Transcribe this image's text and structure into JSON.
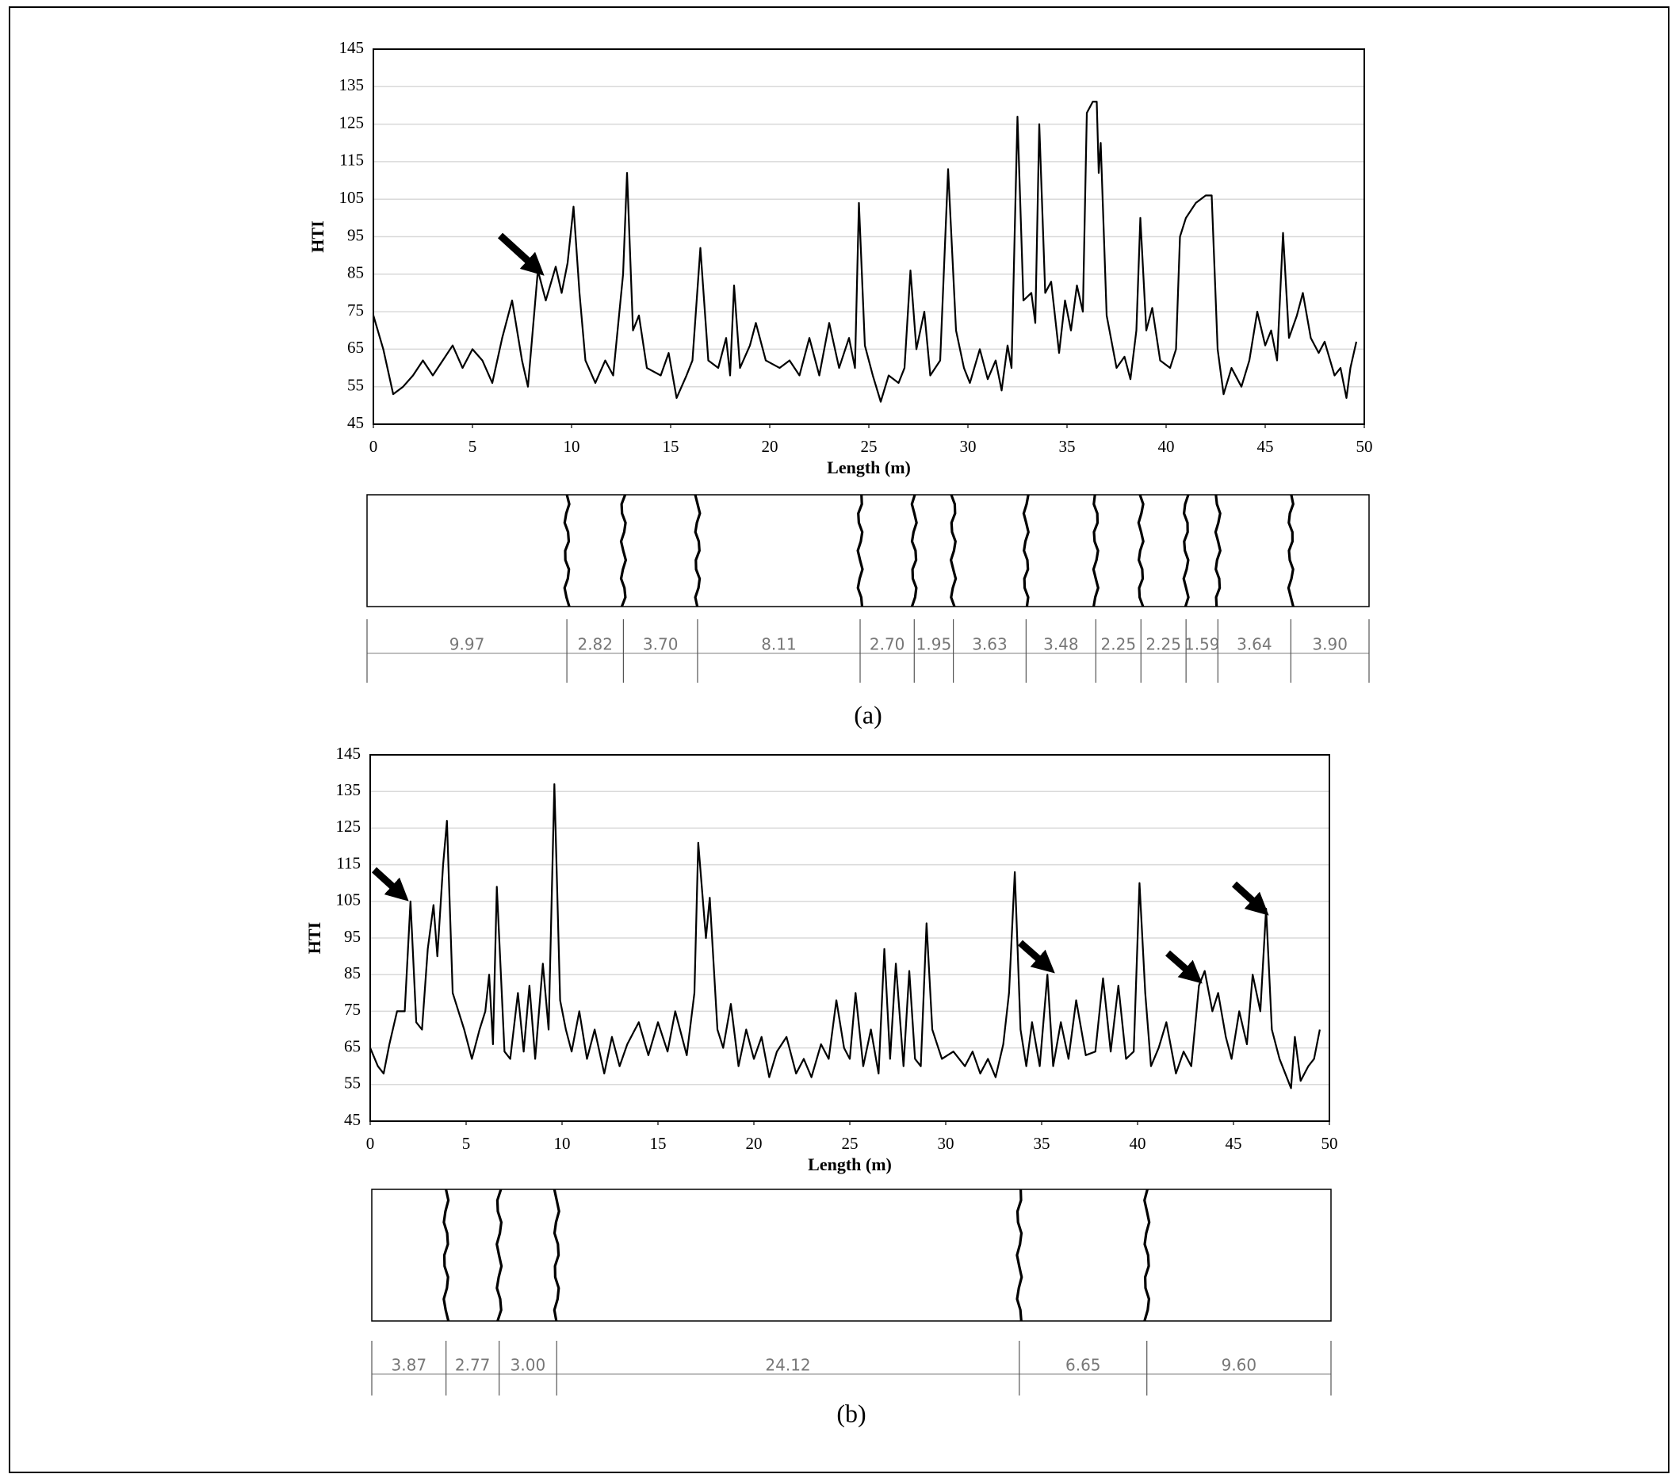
{
  "chart_data": [
    {
      "type": "line",
      "y_label": "HTI",
      "x_label": "Length (m)",
      "xlim": [
        0,
        50
      ],
      "xticks": [
        0,
        5,
        10,
        15,
        20,
        25,
        30,
        35,
        40,
        45,
        50
      ],
      "ylim": [
        45,
        145
      ],
      "yticks": [
        45,
        55,
        65,
        75,
        85,
        95,
        105,
        115,
        125,
        135,
        145
      ],
      "grid": true,
      "x": [
        0,
        0.5,
        1,
        1.5,
        2,
        2.5,
        3,
        3.5,
        4,
        4.5,
        5,
        5.5,
        6,
        6.5,
        7,
        7.5,
        7.8,
        8.3,
        8.7,
        9.2,
        9.5,
        9.8,
        10.1,
        10.4,
        10.7,
        11.2,
        11.7,
        12.1,
        12.6,
        12.8,
        13.1,
        13.4,
        13.8,
        14.5,
        14.9,
        15.3,
        15.8,
        16.1,
        16.5,
        16.9,
        17.4,
        17.8,
        18,
        18.2,
        18.5,
        19,
        19.3,
        19.8,
        20.5,
        21,
        21.5,
        22,
        22.5,
        23,
        23.5,
        24,
        24.3,
        24.5,
        24.8,
        25.2,
        25.6,
        26,
        26.5,
        26.8,
        27.1,
        27.4,
        27.8,
        28.1,
        28.6,
        29,
        29.4,
        29.8,
        30.1,
        30.6,
        31,
        31.4,
        31.7,
        32,
        32.2,
        32.4,
        32.5,
        32.8,
        33.2,
        33.4,
        33.6,
        33.9,
        34.2,
        34.6,
        34.9,
        35.2,
        35.5,
        35.8,
        36,
        36.3,
        36.5,
        36.6,
        36.7,
        37,
        37.5,
        37.9,
        38.2,
        38.5,
        38.7,
        39,
        39.3,
        39.7,
        40.2,
        40.5,
        40.7,
        41,
        41.5,
        42,
        42.3,
        42.6,
        42.9,
        43.3,
        43.8,
        44.2,
        44.6,
        45,
        45.3,
        45.6,
        45.9,
        46.2,
        46.6,
        46.9,
        47.3,
        47.7,
        48,
        48.5,
        48.8,
        49.1,
        49.3,
        49.6
      ],
      "series": [
        {
          "color": "#000000",
          "values": [
            74,
            65,
            53,
            55,
            58,
            62,
            58,
            62,
            66,
            60,
            65,
            62,
            56,
            68,
            78,
            62,
            55,
            86,
            78,
            87,
            80,
            88,
            103,
            80,
            62,
            56,
            62,
            58,
            85,
            112,
            70,
            74,
            60,
            58,
            64,
            52,
            58,
            62,
            92,
            62,
            60,
            68,
            58,
            82,
            60,
            66,
            72,
            62,
            60,
            62,
            58,
            68,
            58,
            72,
            60,
            68,
            60,
            104,
            66,
            58,
            51,
            58,
            56,
            60,
            86,
            65,
            75,
            58,
            62,
            113,
            70,
            60,
            56,
            65,
            57,
            62,
            54,
            66,
            60,
            105,
            127,
            78,
            80,
            72,
            125,
            80,
            83,
            64,
            78,
            70,
            82,
            75,
            128,
            131,
            131,
            112,
            120,
            74,
            60,
            63,
            57,
            70,
            100,
            70,
            76,
            62,
            60,
            65,
            95,
            100,
            104,
            106,
            106,
            65,
            53,
            60,
            55,
            62,
            75,
            66,
            70,
            62,
            96,
            68,
            74,
            80,
            68,
            64,
            67,
            58,
            60,
            52,
            60,
            67
          ]
        }
      ]
    },
    {
      "type": "spacing",
      "caption": "(a)",
      "values": [
        9.97,
        2.82,
        3.7,
        8.11,
        2.7,
        1.95,
        3.63,
        3.48,
        2.25,
        2.25,
        1.59,
        3.64,
        3.9
      ],
      "value_labels": [
        "9.97",
        "2.82",
        "3.70",
        "8.11",
        "2.70",
        "1.95",
        "3.63",
        "3.48",
        "2.25",
        "2.25",
        "1.59",
        "3.64",
        "3.90"
      ]
    },
    {
      "type": "line",
      "y_label": "HTI",
      "x_label": "Length (m)",
      "xlim": [
        0,
        50
      ],
      "xticks": [
        0,
        5,
        10,
        15,
        20,
        25,
        30,
        35,
        40,
        45,
        50
      ],
      "ylim": [
        45,
        145
      ],
      "yticks": [
        45,
        55,
        65,
        75,
        85,
        95,
        105,
        115,
        125,
        135,
        145
      ],
      "grid": true,
      "x": [
        0,
        0.4,
        0.7,
        1,
        1.4,
        1.8,
        2.1,
        2.4,
        2.7,
        3,
        3.3,
        3.5,
        3.8,
        4,
        4.3,
        4.6,
        4.9,
        5.3,
        5.7,
        6,
        6.2,
        6.4,
        6.6,
        7,
        7.3,
        7.7,
        8,
        8.3,
        8.6,
        9,
        9.3,
        9.6,
        9.9,
        10.2,
        10.5,
        10.9,
        11.3,
        11.7,
        12.2,
        12.6,
        13,
        13.4,
        14,
        14.5,
        15,
        15.5,
        15.9,
        16.5,
        16.9,
        17.1,
        17.5,
        17.7,
        18.1,
        18.4,
        18.8,
        19.2,
        19.6,
        20,
        20.4,
        20.8,
        21.2,
        21.7,
        22.2,
        22.6,
        23,
        23.5,
        23.9,
        24.3,
        24.7,
        25,
        25.3,
        25.7,
        26.1,
        26.5,
        26.8,
        27.1,
        27.4,
        27.8,
        28.1,
        28.4,
        28.7,
        29,
        29.3,
        29.8,
        30.4,
        31,
        31.4,
        31.8,
        32.2,
        32.6,
        33,
        33.3,
        33.6,
        33.9,
        34.2,
        34.5,
        34.9,
        35.3,
        35.6,
        36,
        36.4,
        36.8,
        37.3,
        37.8,
        38.2,
        38.6,
        39,
        39.4,
        39.8,
        40.1,
        40.4,
        40.7,
        41.1,
        41.5,
        42,
        42.4,
        42.8,
        43.2,
        43.5,
        43.9,
        44.2,
        44.6,
        44.9,
        45.3,
        45.7,
        46,
        46.4,
        46.7,
        47,
        47.4,
        47.7,
        48,
        48.2,
        48.5,
        48.9,
        49.2,
        49.5
      ],
      "series": [
        {
          "color": "#000000",
          "values": [
            65,
            60,
            58,
            66,
            75,
            75,
            105,
            72,
            70,
            92,
            104,
            90,
            115,
            127,
            80,
            75,
            70,
            62,
            70,
            75,
            85,
            66,
            109,
            64,
            62,
            80,
            64,
            82,
            62,
            88,
            70,
            137,
            78,
            70,
            64,
            75,
            62,
            70,
            58,
            68,
            60,
            66,
            72,
            63,
            72,
            64,
            75,
            63,
            80,
            121,
            95,
            106,
            70,
            65,
            77,
            60,
            70,
            62,
            68,
            57,
            64,
            68,
            58,
            62,
            57,
            66,
            62,
            78,
            65,
            62,
            80,
            60,
            70,
            58,
            92,
            62,
            88,
            60,
            86,
            62,
            60,
            99,
            70,
            62,
            64,
            60,
            64,
            58,
            62,
            57,
            66,
            80,
            113,
            70,
            60,
            72,
            60,
            85,
            60,
            72,
            62,
            78,
            63,
            64,
            84,
            64,
            82,
            62,
            64,
            110,
            80,
            60,
            65,
            72,
            58,
            64,
            60,
            82,
            86,
            75,
            80,
            68,
            62,
            75,
            66,
            85,
            75,
            103,
            70,
            62,
            58,
            54,
            68,
            56,
            60,
            62,
            70
          ]
        }
      ]
    },
    {
      "type": "spacing",
      "caption": "(b)",
      "values": [
        3.87,
        2.77,
        3,
        24.12,
        6.65,
        9.6
      ],
      "value_labels": [
        "3.87",
        "2.77",
        "3.00",
        "24.12",
        "6.65",
        "9.60"
      ]
    }
  ]
}
